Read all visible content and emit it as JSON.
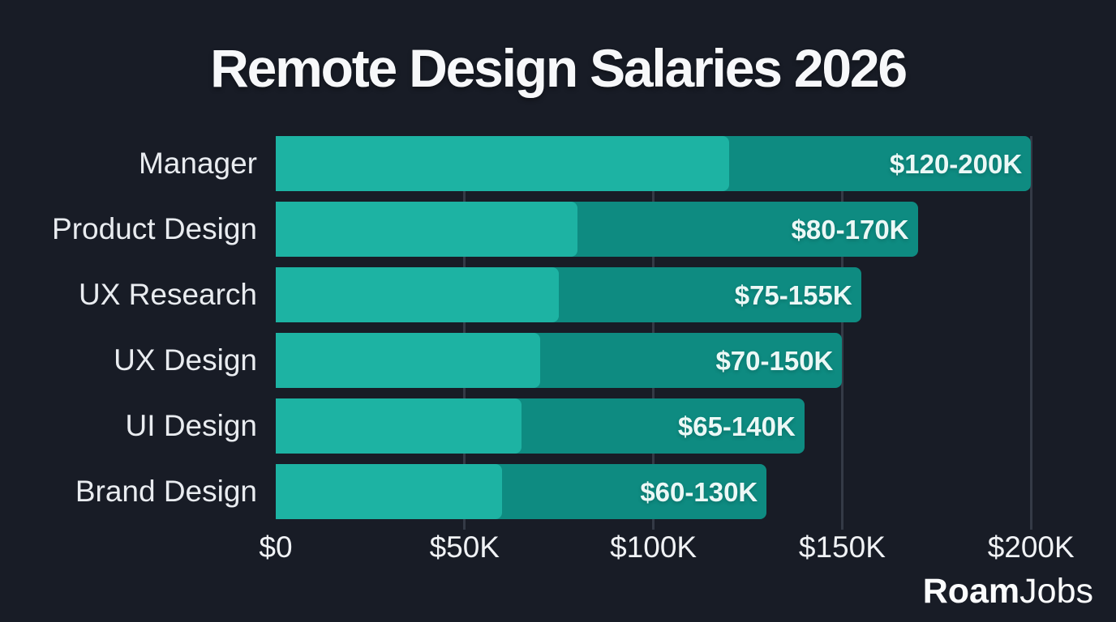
{
  "chart_data": {
    "type": "bar",
    "orientation": "horizontal",
    "title": "Remote Design Salaries 2026",
    "categories": [
      "Manager",
      "Product Design",
      "UX Research",
      "UX Design",
      "UI Design",
      "Brand Design"
    ],
    "series": [
      {
        "name": "minimum",
        "values": [
          120,
          80,
          75,
          70,
          65,
          60
        ],
        "color": "#1db3a3"
      },
      {
        "name": "maximum",
        "values": [
          200,
          170,
          155,
          150,
          140,
          130
        ],
        "color": "#0e8b81"
      }
    ],
    "bar_labels": [
      "$120-200K",
      "$80-170K",
      "$75-155K",
      "$70-150K",
      "$65-140K",
      "$60-130K"
    ],
    "x_ticks": [
      {
        "value": 0,
        "label": "$0"
      },
      {
        "value": 50,
        "label": "$50K"
      },
      {
        "value": 100,
        "label": "$100K"
      },
      {
        "value": 150,
        "label": "$150K"
      },
      {
        "value": 200,
        "label": "$200K"
      }
    ],
    "xlim": [
      0,
      200
    ],
    "grid": true,
    "gridline_values": [
      50,
      100,
      150,
      200
    ],
    "legend": false
  },
  "branding": {
    "logo_bold": "Roam",
    "logo_light": "Jobs"
  },
  "colors": {
    "background": "#181c26",
    "bar_min": "#1db3a3",
    "bar_max": "#0e8b81",
    "text": "#f0f2f5",
    "gridline": "rgba(126,138,156,0.28)"
  }
}
